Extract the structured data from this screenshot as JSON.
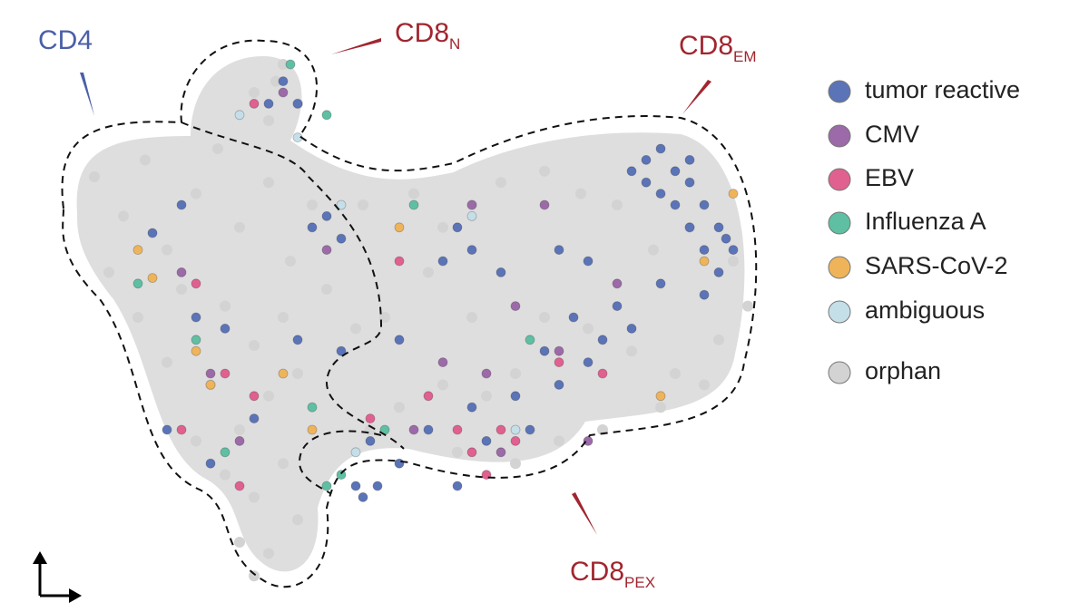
{
  "chart_data": {
    "type": "scatter",
    "annotations": [
      {
        "text": "CD4",
        "color": "#4a5fa8"
      },
      {
        "text": "CD8",
        "subscript": "N",
        "color": "#a1262f"
      },
      {
        "text": "CD8",
        "subscript": "EM",
        "color": "#a1262f"
      },
      {
        "text": "CD8",
        "subscript": "PEX",
        "color": "#a1262f"
      }
    ],
    "xlim": [
      0,
      100
    ],
    "ylim": [
      0,
      100
    ],
    "series": [
      {
        "name": "orphan",
        "color": "#d3d3d3",
        "x": [
          8,
          12,
          15,
          18,
          22,
          25,
          28,
          32,
          35,
          38,
          10,
          14,
          20,
          26,
          30,
          34,
          40,
          44,
          18,
          24,
          28,
          32,
          36,
          22,
          26,
          30,
          34,
          28,
          32,
          36,
          30,
          30,
          33,
          36,
          32,
          34,
          45,
          52,
          56,
          60,
          64,
          70,
          75,
          80,
          85,
          90,
          96,
          98,
          94,
          88,
          82,
          76,
          70,
          66,
          62,
          56,
          50,
          46,
          58,
          66,
          72,
          78,
          86,
          92,
          54,
          48,
          60
        ],
        "values": [
          75,
          68,
          78,
          62,
          72,
          80,
          66,
          74,
          60,
          70,
          58,
          50,
          55,
          52,
          45,
          50,
          55,
          48,
          42,
          38,
          30,
          36,
          40,
          28,
          22,
          18,
          24,
          10,
          8,
          14,
          4,
          90,
          92,
          88,
          85,
          95,
          70,
          72,
          66,
          70,
          74,
          76,
          72,
          70,
          62,
          66,
          60,
          52,
          46,
          40,
          44,
          48,
          50,
          40,
          36,
          38,
          34,
          30,
          26,
          24,
          28,
          30,
          34,
          38,
          58,
          50,
          50
        ]
      },
      {
        "name": "tumor reactive",
        "color": "#5b74b8",
        "x": [
          84,
          86,
          88,
          90,
          92,
          94,
          96,
          88,
          90,
          86,
          92,
          94,
          84,
          82,
          90,
          95,
          80,
          78,
          74,
          76,
          82,
          70,
          72,
          66,
          60,
          58,
          62,
          68,
          54,
          50,
          46,
          56,
          58,
          60,
          40,
          38,
          42,
          36,
          32,
          34,
          45,
          47,
          44,
          20,
          16,
          22,
          26,
          30,
          18,
          24,
          36,
          42,
          50,
          64,
          72,
          76,
          86,
          92
        ],
        "values": [
          78,
          80,
          76,
          74,
          70,
          66,
          62,
          70,
          66,
          72,
          62,
          58,
          74,
          76,
          78,
          64,
          52,
          46,
          50,
          42,
          48,
          44,
          38,
          36,
          34,
          20,
          28,
          30,
          30,
          24,
          28,
          60,
          66,
          62,
          68,
          66,
          64,
          88,
          88,
          92,
          18,
          20,
          20,
          70,
          65,
          50,
          48,
          32,
          30,
          24,
          46,
          44,
          46,
          58,
          62,
          60,
          56,
          54
        ]
      },
      {
        "name": "CMV",
        "color": "#9c6aa8",
        "x": [
          34,
          40,
          20,
          24,
          28,
          56,
          62,
          66,
          72,
          80,
          76,
          64,
          52,
          70,
          60
        ],
        "values": [
          90,
          62,
          58,
          40,
          28,
          42,
          40,
          52,
          44,
          56,
          28,
          26,
          30,
          70,
          70
        ]
      },
      {
        "name": "EBV",
        "color": "#e0608f",
        "x": [
          30,
          22,
          26,
          30,
          20,
          28,
          60,
          62,
          64,
          58,
          66,
          54,
          46,
          72,
          78,
          50
        ],
        "values": [
          88,
          56,
          40,
          36,
          30,
          20,
          26,
          22,
          30,
          30,
          28,
          36,
          32,
          42,
          40,
          60
        ]
      },
      {
        "name": "Influenza A",
        "color": "#5fbfa3",
        "x": [
          35,
          40,
          14,
          22,
          26,
          38,
          40,
          42,
          52,
          48,
          68
        ],
        "values": [
          95,
          86,
          56,
          46,
          26,
          34,
          20,
          22,
          70,
          30,
          46
        ]
      },
      {
        "name": "SARS-CoV-2",
        "color": "#efb45a",
        "x": [
          14,
          16,
          22,
          24,
          34,
          38,
          50,
          86,
          92,
          96
        ],
        "values": [
          62,
          57,
          44,
          38,
          40,
          30,
          66,
          36,
          60,
          72
        ]
      },
      {
        "name": "ambiguous",
        "color": "#c5dfe9",
        "x": [
          28,
          36,
          42,
          60,
          66,
          44
        ],
        "values": [
          86,
          82,
          70,
          68,
          30,
          26
        ]
      }
    ],
    "legend_order": [
      1,
      2,
      3,
      4,
      5,
      6,
      0
    ]
  }
}
